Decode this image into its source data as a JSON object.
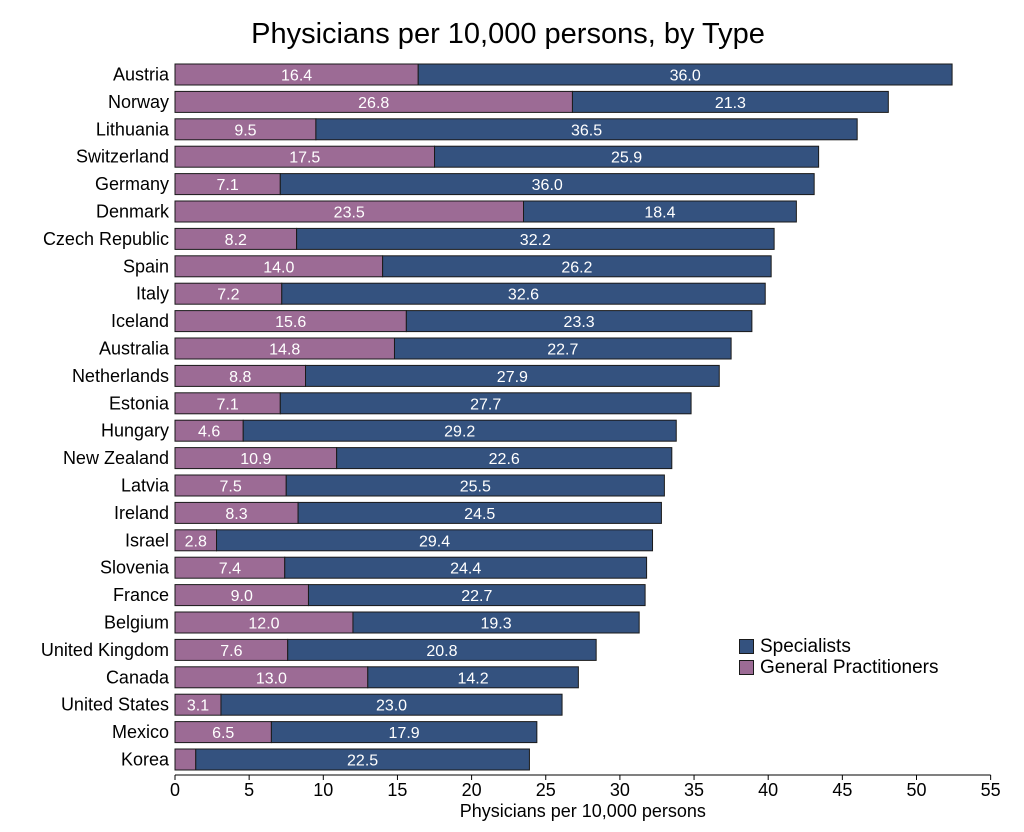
{
  "chart_data": {
    "type": "bar",
    "orientation": "horizontal",
    "stacked": true,
    "title": "Physicians per 10,000 persons, by Type",
    "xlabel": "Physicians per 10,000 persons",
    "ylabel": "",
    "xlim": [
      0,
      55
    ],
    "x_ticks": [
      "0",
      "5",
      "10",
      "15",
      "20",
      "25",
      "30",
      "35",
      "40",
      "45",
      "50",
      "55"
    ],
    "grid": false,
    "legend_position": "bottom-right",
    "categories": [
      "Austria",
      "Norway",
      "Lithuania",
      "Switzerland",
      "Germany",
      "Denmark",
      "Czech Republic",
      "Spain",
      "Italy",
      "Iceland",
      "Australia",
      "Netherlands",
      "Estonia",
      "Hungary",
      "New Zealand",
      "Latvia",
      "Ireland",
      "Israel",
      "Slovenia",
      "France",
      "Belgium",
      "United Kingdom",
      "Canada",
      "United States",
      "Mexico",
      "Korea"
    ],
    "series": [
      {
        "name": "General Practitioners",
        "color": "#9c6b95",
        "values": [
          16.4,
          26.8,
          9.5,
          17.5,
          7.1,
          23.5,
          8.2,
          14.0,
          7.2,
          15.6,
          14.8,
          8.8,
          7.1,
          4.6,
          10.9,
          7.5,
          8.3,
          2.8,
          7.4,
          9.0,
          12.0,
          7.6,
          13.0,
          3.1,
          6.5,
          1.4
        ],
        "labels": [
          "16.4",
          "26.8",
          "9.5",
          "17.5",
          "7.1",
          "23.5",
          "8.2",
          "14.0",
          "7.2",
          "15.6",
          "14.8",
          "8.8",
          "7.1",
          "4.6",
          "10.9",
          "7.5",
          "8.3",
          "2.8",
          "7.4",
          "9.0",
          "12.0",
          "7.6",
          "13.0",
          "3.1",
          "6.5",
          ""
        ]
      },
      {
        "name": "Specialists",
        "color": "#34527f",
        "values": [
          36.0,
          21.3,
          36.5,
          25.9,
          36.0,
          18.4,
          32.2,
          26.2,
          32.6,
          23.3,
          22.7,
          27.9,
          27.7,
          29.2,
          22.6,
          25.5,
          24.5,
          29.4,
          24.4,
          22.7,
          19.3,
          20.8,
          14.2,
          23.0,
          17.9,
          22.5
        ],
        "labels": [
          "36.0",
          "21.3",
          "36.5",
          "25.9",
          "36.0",
          "18.4",
          "32.2",
          "26.2",
          "32.6",
          "23.3",
          "22.7",
          "27.9",
          "27.7",
          "29.2",
          "22.6",
          "25.5",
          "24.5",
          "29.4",
          "24.4",
          "22.7",
          "19.3",
          "20.8",
          "14.2",
          "23.0",
          "17.9",
          "22.5"
        ]
      }
    ]
  },
  "legend": {
    "items": [
      {
        "label": "Specialists",
        "color": "#34527f"
      },
      {
        "label": "General Practitioners",
        "color": "#9c6b95"
      }
    ]
  }
}
